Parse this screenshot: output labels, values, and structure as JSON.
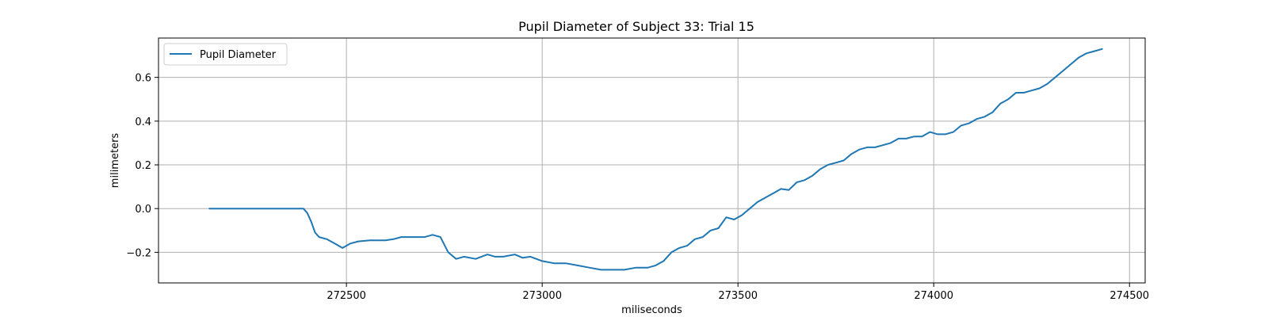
{
  "chart_data": {
    "type": "line",
    "title": "Pupil Diameter of Subject 33: Trial 15",
    "xlabel": "miliseconds",
    "ylabel": "milimeters",
    "xlim": [
      272020,
      274540
    ],
    "ylim": [
      -0.34,
      0.78
    ],
    "xticks": [
      272500,
      273000,
      273500,
      274000,
      274500
    ],
    "yticks": [
      -0.2,
      0.0,
      0.2,
      0.4,
      0.6
    ],
    "ytick_labels": [
      "−0.2",
      "0.0",
      "0.2",
      "0.4",
      "0.6"
    ],
    "grid": true,
    "legend": "upper left",
    "series": [
      {
        "name": "Pupil Diameter",
        "color": "#1f77b4",
        "x": [
          272150,
          272200,
          272250,
          272300,
          272350,
          272390,
          272400,
          272410,
          272420,
          272430,
          272450,
          272470,
          272490,
          272510,
          272530,
          272560,
          272600,
          272620,
          272640,
          272660,
          272680,
          272700,
          272720,
          272740,
          272760,
          272780,
          272800,
          272830,
          272860,
          272880,
          272900,
          272930,
          272950,
          272970,
          273000,
          273030,
          273060,
          273090,
          273120,
          273150,
          273180,
          273210,
          273240,
          273270,
          273290,
          273310,
          273330,
          273350,
          273370,
          273390,
          273410,
          273430,
          273450,
          273470,
          273490,
          273510,
          273530,
          273550,
          273570,
          273590,
          273610,
          273630,
          273650,
          273670,
          273690,
          273710,
          273730,
          273750,
          273770,
          273790,
          273810,
          273830,
          273850,
          273870,
          273890,
          273910,
          273930,
          273950,
          273970,
          273990,
          274010,
          274030,
          274050,
          274070,
          274090,
          274110,
          274130,
          274150,
          274170,
          274190,
          274210,
          274230,
          274250,
          274270,
          274290,
          274310,
          274330,
          274350,
          274370,
          274390,
          274410,
          274430
        ],
        "y": [
          0.0,
          0.0,
          0.0,
          0.0,
          0.0,
          0.0,
          -0.02,
          -0.06,
          -0.11,
          -0.13,
          -0.14,
          -0.16,
          -0.18,
          -0.16,
          -0.15,
          -0.145,
          -0.145,
          -0.14,
          -0.13,
          -0.13,
          -0.13,
          -0.13,
          -0.12,
          -0.13,
          -0.2,
          -0.23,
          -0.22,
          -0.23,
          -0.21,
          -0.22,
          -0.22,
          -0.21,
          -0.225,
          -0.22,
          -0.24,
          -0.25,
          -0.25,
          -0.26,
          -0.27,
          -0.28,
          -0.28,
          -0.28,
          -0.27,
          -0.27,
          -0.26,
          -0.24,
          -0.2,
          -0.18,
          -0.17,
          -0.14,
          -0.13,
          -0.1,
          -0.09,
          -0.04,
          -0.05,
          -0.03,
          0.0,
          0.03,
          0.05,
          0.07,
          0.09,
          0.085,
          0.12,
          0.13,
          0.15,
          0.18,
          0.2,
          0.21,
          0.22,
          0.25,
          0.27,
          0.28,
          0.28,
          0.29,
          0.3,
          0.32,
          0.32,
          0.33,
          0.33,
          0.35,
          0.34,
          0.34,
          0.35,
          0.38,
          0.39,
          0.41,
          0.42,
          0.44,
          0.48,
          0.5,
          0.53,
          0.53,
          0.54,
          0.55,
          0.57,
          0.6,
          0.63,
          0.66,
          0.69,
          0.71,
          0.72,
          0.73
        ]
      }
    ]
  }
}
